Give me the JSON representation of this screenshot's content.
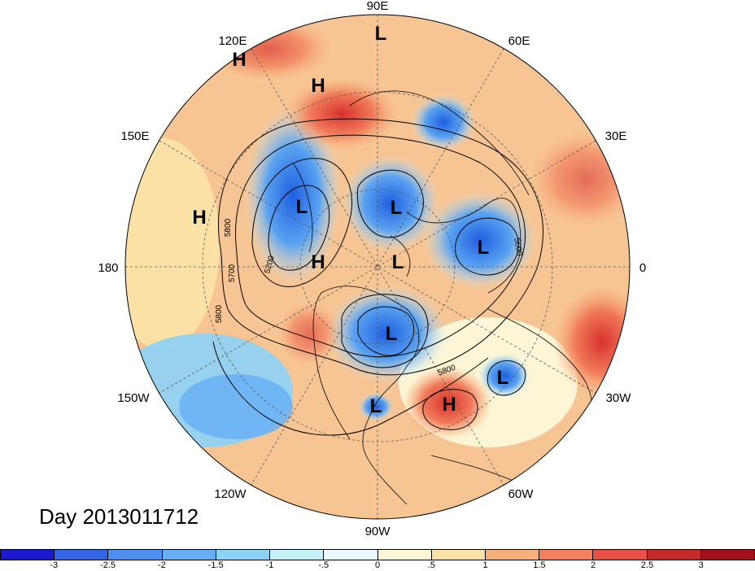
{
  "title": "Day 2013011712",
  "longitude_labels": [
    "90E",
    "60E",
    "30E",
    "0",
    "30W",
    "60W",
    "90W",
    "120W",
    "150W",
    "180",
    "150E",
    "120E"
  ],
  "pressure_centers": [
    {
      "type": "L"
    },
    {
      "type": "H"
    },
    {
      "type": "H"
    },
    {
      "type": "L"
    },
    {
      "type": "H"
    },
    {
      "type": "L"
    },
    {
      "type": "L"
    },
    {
      "type": "L"
    },
    {
      "type": "H"
    },
    {
      "type": "L"
    },
    {
      "type": "L"
    },
    {
      "type": "L"
    },
    {
      "type": "H"
    }
  ],
  "contour_labels": [
    "5800",
    "5700",
    "5800",
    "5200",
    "5600",
    "5800"
  ],
  "colorbar": {
    "labels": [
      "-3",
      "-2.5",
      "-2",
      "-1.5",
      "-1",
      "-.5",
      "0",
      ".5",
      "1",
      "1.5",
      "2",
      "2.5",
      "3"
    ],
    "colors": [
      "#1a1ad0",
      "#3366e6",
      "#4d8ff0",
      "#66aef5",
      "#8cd2f7",
      "#c6f0fa",
      "#eaf8fb",
      "#fdf6d6",
      "#fbe1a5",
      "#f7b07a",
      "#f48060",
      "#e84f45",
      "#c52a2a",
      "#a30f1c"
    ]
  }
}
